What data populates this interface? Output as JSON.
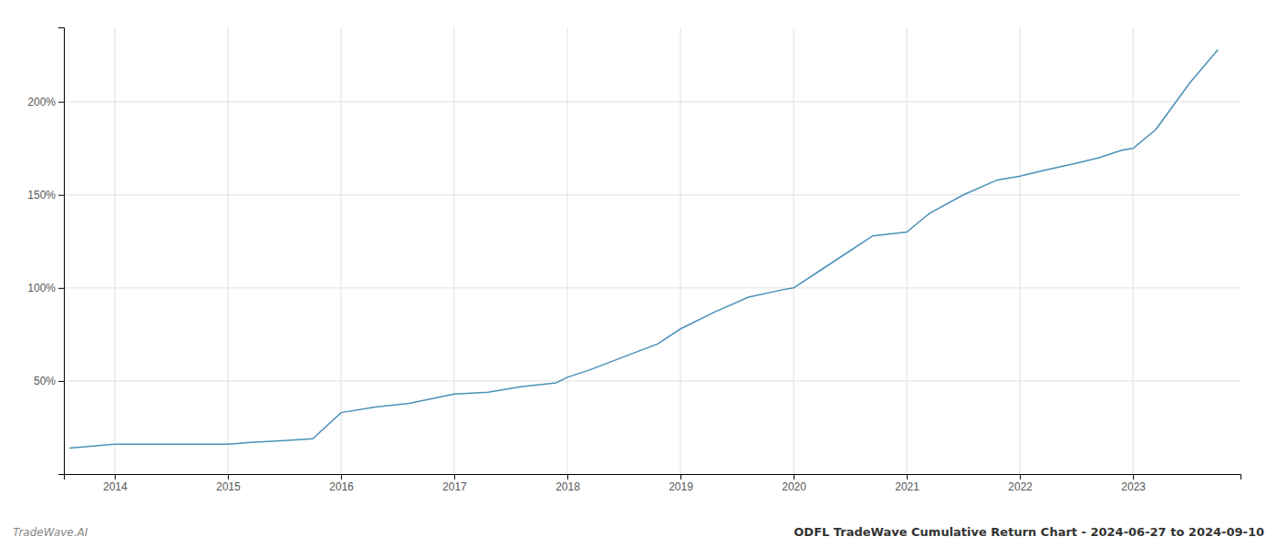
{
  "chart_data": {
    "type": "line",
    "title": "ODFL TradeWave Cumulative Return Chart - 2024-06-27 to 2024-09-10",
    "annotations": [
      "TradeWave.AI"
    ],
    "x": [
      2013.6,
      2014.0,
      2014.5,
      2015.0,
      2015.2,
      2015.5,
      2015.75,
      2016.0,
      2016.3,
      2016.6,
      2017.0,
      2017.3,
      2017.6,
      2017.9,
      2018.0,
      2018.2,
      2018.5,
      2018.8,
      2019.0,
      2019.3,
      2019.6,
      2019.9,
      2020.0,
      2020.2,
      2020.5,
      2020.7,
      2021.0,
      2021.2,
      2021.5,
      2021.8,
      2022.0,
      2022.2,
      2022.5,
      2022.7,
      2022.9,
      2023.0,
      2023.2,
      2023.5,
      2023.75
    ],
    "values": [
      14,
      16,
      16,
      16,
      17,
      18,
      19,
      33,
      36,
      38,
      43,
      44,
      47,
      49,
      52,
      56,
      63,
      70,
      78,
      87,
      95,
      99,
      100,
      108,
      120,
      128,
      130,
      140,
      150,
      158,
      160,
      163,
      167,
      170,
      174,
      175,
      185,
      210,
      228
    ],
    "color": "#4a90b8",
    "xlim": [
      2013.55,
      2023.95
    ],
    "xticks": [
      2014,
      2015,
      2016,
      2017,
      2018,
      2019,
      2020,
      2021,
      2022,
      2023
    ],
    "ylim": [
      0,
      240
    ],
    "yticks": [
      {
        "value": 50,
        "label": "50%"
      },
      {
        "value": 100,
        "label": "100%"
      },
      {
        "value": 150,
        "label": "150%"
      },
      {
        "value": 200,
        "label": "200%"
      }
    ],
    "grid": true
  }
}
